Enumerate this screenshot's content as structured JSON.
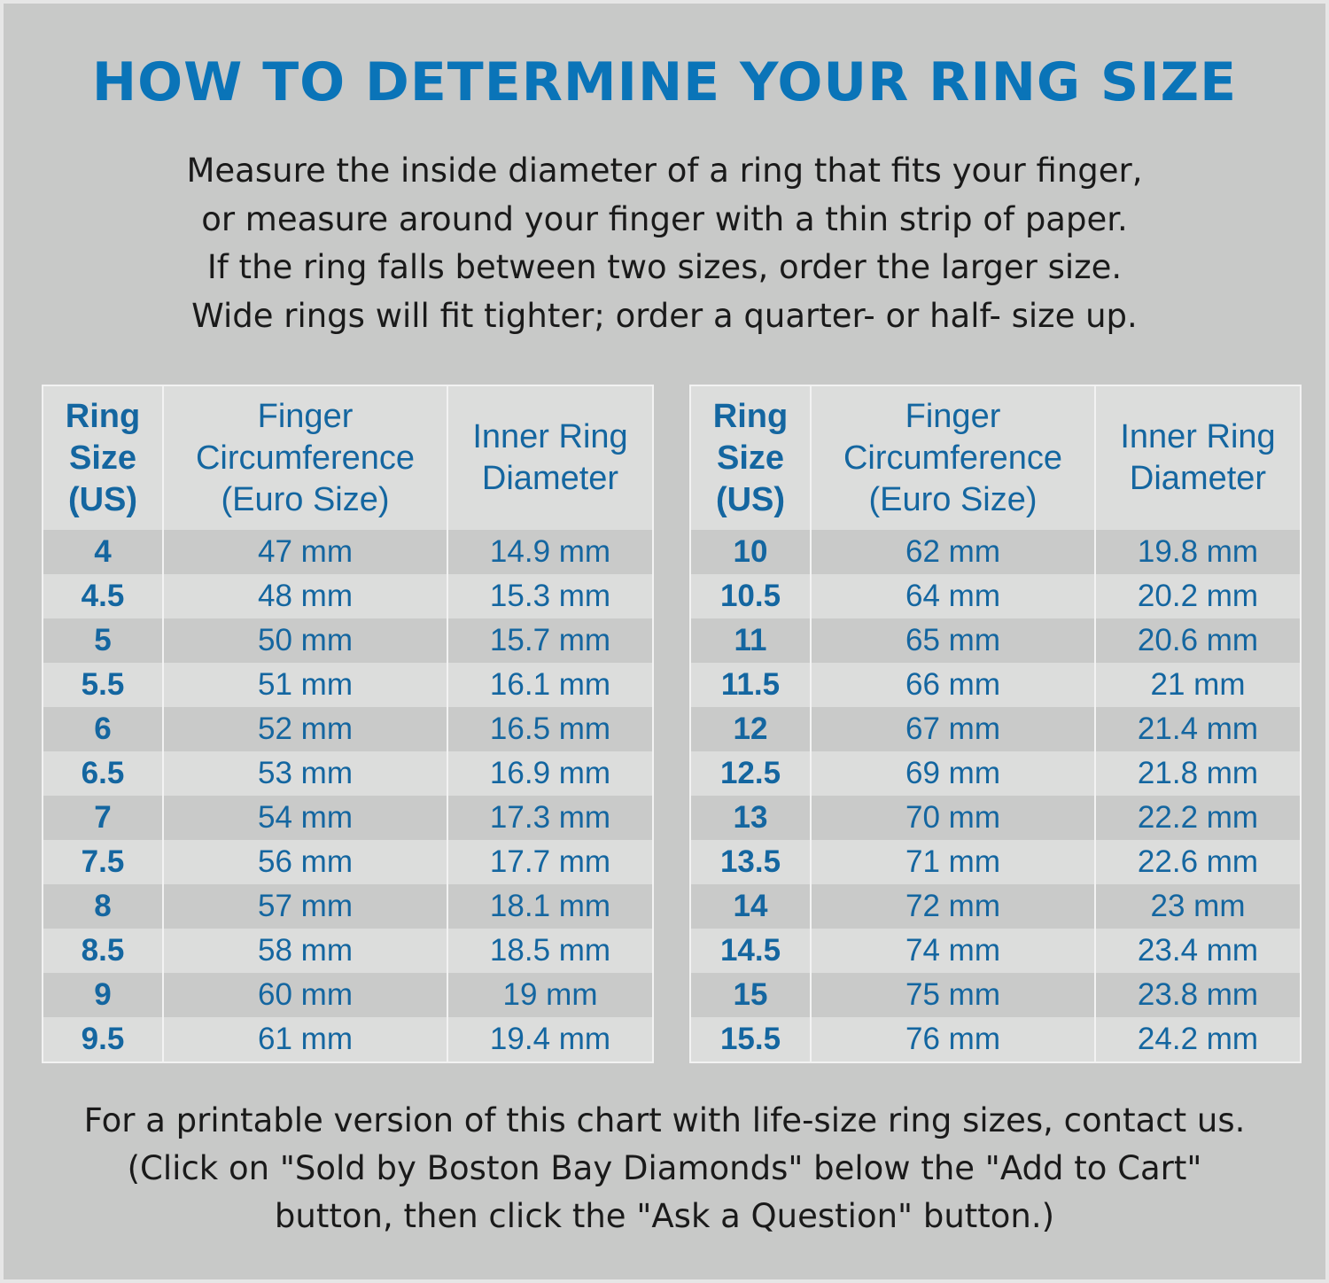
{
  "title": "HOW TO DETERMINE YOUR RING SIZE",
  "intro_lines": [
    "Measure the inside diameter of a ring that fits your finger,",
    "or measure around your finger with a thin strip of paper.",
    "If the ring falls between two sizes, order the larger size.",
    "Wide rings will fit tighter; order a quarter- or half- size up."
  ],
  "colors": {
    "title": "#0a74b8",
    "table_text": "#1466a0",
    "background": "#c8c9c8"
  },
  "headers": {
    "size": [
      "Ring",
      "Size",
      "(US)"
    ],
    "circ": [
      "Finger",
      "Circumference",
      "(Euro Size)"
    ],
    "diam": [
      "Inner Ring",
      "Diameter"
    ]
  },
  "left_rows": [
    [
      "4",
      "47 mm",
      "14.9 mm"
    ],
    [
      "4.5",
      "48 mm",
      "15.3 mm"
    ],
    [
      "5",
      "50 mm",
      "15.7 mm"
    ],
    [
      "5.5",
      "51 mm",
      "16.1 mm"
    ],
    [
      "6",
      "52 mm",
      "16.5 mm"
    ],
    [
      "6.5",
      "53 mm",
      "16.9 mm"
    ],
    [
      "7",
      "54 mm",
      "17.3 mm"
    ],
    [
      "7.5",
      "56 mm",
      "17.7 mm"
    ],
    [
      "8",
      "57 mm",
      "18.1 mm"
    ],
    [
      "8.5",
      "58 mm",
      "18.5 mm"
    ],
    [
      "9",
      "60 mm",
      "19 mm"
    ],
    [
      "9.5",
      "61 mm",
      "19.4 mm"
    ]
  ],
  "right_rows": [
    [
      "10",
      "62 mm",
      "19.8 mm"
    ],
    [
      "10.5",
      "64 mm",
      "20.2 mm"
    ],
    [
      "11",
      "65 mm",
      "20.6 mm"
    ],
    [
      "11.5",
      "66 mm",
      "21 mm"
    ],
    [
      "12",
      "67 mm",
      "21.4 mm"
    ],
    [
      "12.5",
      "69 mm",
      "21.8 mm"
    ],
    [
      "13",
      "70 mm",
      "22.2 mm"
    ],
    [
      "13.5",
      "71 mm",
      "22.6 mm"
    ],
    [
      "14",
      "72 mm",
      "23 mm"
    ],
    [
      "14.5",
      "74 mm",
      "23.4 mm"
    ],
    [
      "15",
      "75 mm",
      "23.8 mm"
    ],
    [
      "15.5",
      "76 mm",
      "24.2 mm"
    ]
  ],
  "footer_lines": [
    "For a printable version of this chart with life-size ring sizes, contact us.",
    "(Click on \"Sold by Boston Bay Diamonds\" below the \"Add to Cart\"",
    "button, then click the \"Ask a Question\" button.)"
  ]
}
